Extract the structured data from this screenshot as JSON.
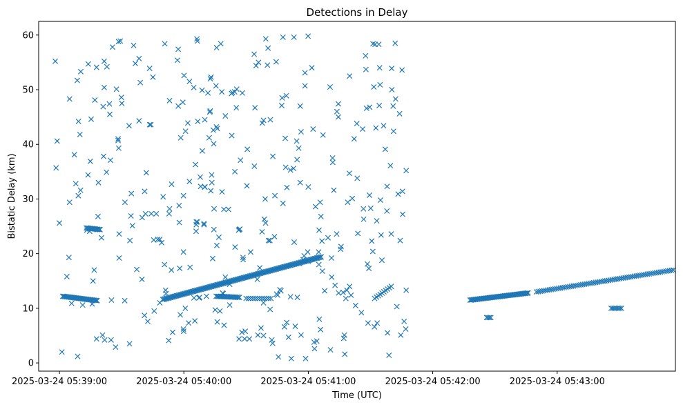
{
  "chart_data": {
    "type": "scatter",
    "title": "Detections in Delay",
    "xlabel": "Time (UTC)",
    "ylabel": "Bistatic Delay (km)",
    "x_unit": "seconds past 2025-03-24 05:38:00 UTC",
    "xlim": [
      50,
      357
    ],
    "ylim": [
      -1.5,
      62.5
    ],
    "x_ticks": [
      {
        "value": 60,
        "label": "2025-03-24 05:39:00"
      },
      {
        "value": 120,
        "label": "2025-03-24 05:40:00"
      },
      {
        "value": 180,
        "label": "2025-03-24 05:41:00"
      },
      {
        "value": 240,
        "label": "2025-03-24 05:42:00"
      },
      {
        "value": 300,
        "label": "2025-03-24 05:43:00"
      }
    ],
    "y_ticks": [
      0,
      10,
      20,
      30,
      40,
      50,
      60
    ],
    "marker": "x",
    "color": "#1f77b4",
    "grid": false,
    "legend": "none",
    "tracks": [
      {
        "x_start": 61.6,
        "x_end": 78.2,
        "y_start": 12.2,
        "y_end": 11.4,
        "count": 34
      },
      {
        "x_start": 73.0,
        "x_end": 79.6,
        "y_start": 24.7,
        "y_end": 24.4,
        "count": 13
      },
      {
        "x_start": 109.8,
        "x_end": 186.2,
        "y_start": 11.6,
        "y_end": 19.4,
        "count": 150
      },
      {
        "x_start": 135.6,
        "x_end": 146.8,
        "y_start": 12.2,
        "y_end": 12.0,
        "count": 20
      },
      {
        "x_start": 258.0,
        "x_end": 286.0,
        "y_start": 11.5,
        "y_end": 12.8,
        "count": 55
      },
      {
        "x_start": 290.0,
        "x_end": 356.0,
        "y_start": 13.0,
        "y_end": 17.0,
        "count": 75
      },
      {
        "x_start": 266.0,
        "x_end": 268.0,
        "y_start": 8.3,
        "y_end": 8.3,
        "count": 4
      },
      {
        "x_start": 326.0,
        "x_end": 331.0,
        "y_start": 10.0,
        "y_end": 10.0,
        "count": 8
      },
      {
        "x_start": 150.0,
        "x_end": 162.0,
        "y_start": 11.8,
        "y_end": 11.8,
        "count": 12
      },
      {
        "x_start": 212.0,
        "x_end": 220.0,
        "y_start": 11.8,
        "y_end": 14.0,
        "count": 10
      }
    ],
    "points": [
      [
        58.0,
        55.2
      ],
      [
        58.4,
        35.7
      ],
      [
        58.9,
        40.6
      ],
      [
        60.0,
        25.6
      ],
      [
        61.2,
        2.0
      ],
      [
        63.6,
        15.8
      ],
      [
        64.6,
        19.3
      ],
      [
        64.9,
        29.4
      ],
      [
        64.9,
        48.3
      ],
      [
        65.9,
        10.9
      ],
      [
        67.2,
        38.1
      ],
      [
        67.9,
        32.8
      ],
      [
        68.6,
        51.7
      ],
      [
        68.8,
        1.2
      ],
      [
        69.1,
        30.6
      ],
      [
        69.2,
        44.2
      ],
      [
        69.9,
        41.8
      ],
      [
        70.2,
        31.6
      ],
      [
        70.3,
        53.3
      ],
      [
        71.2,
        10.6
      ],
      [
        73.2,
        24.3
      ],
      [
        73.8,
        34.4
      ],
      [
        73.9,
        54.7
      ],
      [
        74.6,
        24.1
      ],
      [
        74.9,
        36.9
      ],
      [
        75.3,
        44.6
      ],
      [
        75.8,
        10.8
      ],
      [
        76.2,
        15.0
      ],
      [
        76.8,
        17.0
      ],
      [
        77.1,
        48.1
      ],
      [
        77.9,
        54.1
      ],
      [
        77.9,
        4.4
      ],
      [
        78.2,
        24.4
      ],
      [
        78.6,
        26.8
      ],
      [
        78.8,
        33.0
      ],
      [
        80.3,
        22.9
      ],
      [
        80.8,
        5.1
      ],
      [
        81.1,
        46.9
      ],
      [
        81.3,
        37.8
      ],
      [
        81.6,
        55.2
      ],
      [
        81.6,
        50.4
      ],
      [
        81.8,
        4.2
      ],
      [
        82.7,
        34.9
      ],
      [
        82.9,
        54.2
      ],
      [
        84.1,
        47.4
      ],
      [
        84.3,
        45.5
      ],
      [
        84.6,
        37.1
      ],
      [
        84.9,
        4.2
      ],
      [
        85.1,
        11.5
      ],
      [
        85.6,
        57.8
      ],
      [
        87.1,
        2.9
      ],
      [
        87.5,
        50.1
      ],
      [
        88.3,
        41.0
      ],
      [
        88.3,
        40.7
      ],
      [
        88.5,
        58.8
      ],
      [
        88.6,
        39.3
      ],
      [
        88.8,
        23.6
      ],
      [
        88.8,
        19.2
      ],
      [
        89.4,
        58.9
      ],
      [
        89.9,
        48.6
      ],
      [
        90.1,
        47.5
      ],
      [
        91.5,
        11.4
      ],
      [
        91.6,
        29.4
      ],
      [
        93.6,
        43.4
      ],
      [
        93.8,
        3.5
      ],
      [
        94.0,
        22.4
      ],
      [
        94.5,
        26.9
      ],
      [
        94.7,
        31.0
      ],
      [
        95.2,
        25.1
      ],
      [
        95.8,
        58.1
      ],
      [
        96.6,
        54.8
      ],
      [
        97.3,
        17.1
      ],
      [
        98.4,
        55.7
      ],
      [
        98.4,
        44.3
      ],
      [
        99.0,
        51.3
      ],
      [
        99.8,
        15.3
      ],
      [
        99.9,
        26.6
      ],
      [
        101.0,
        8.7
      ],
      [
        101.1,
        31.4
      ],
      [
        101.5,
        27.3
      ],
      [
        101.9,
        34.8
      ],
      [
        102.6,
        7.6
      ],
      [
        103.5,
        53.9
      ],
      [
        103.5,
        43.6
      ],
      [
        104.1,
        43.6
      ],
      [
        104.3,
        27.3
      ],
      [
        105.1,
        52.3
      ],
      [
        105.5,
        22.5
      ],
      [
        105.7,
        9.5
      ],
      [
        106.7,
        27.3
      ],
      [
        107.4,
        22.6
      ],
      [
        108.4,
        11.0
      ],
      [
        108.4,
        22.6
      ],
      [
        109.3,
        22.0
      ],
      [
        110.0,
        30.4
      ],
      [
        110.7,
        18.0
      ],
      [
        110.8,
        58.4
      ],
      [
        111.2,
        13.3
      ],
      [
        111.4,
        12.7
      ],
      [
        112.7,
        4.1
      ],
      [
        112.9,
        27.3
      ],
      [
        113.1,
        48.0
      ],
      [
        113.1,
        28.2
      ],
      [
        114.0,
        17.0
      ],
      [
        114.1,
        32.7
      ],
      [
        114.6,
        5.6
      ],
      [
        116.9,
        55.4
      ],
      [
        117.3,
        57.4
      ],
      [
        117.3,
        47.0
      ],
      [
        117.7,
        28.8
      ],
      [
        117.8,
        25.7
      ],
      [
        118.0,
        17.3
      ],
      [
        118.3,
        8.8
      ],
      [
        118.5,
        41.2
      ],
      [
        119.5,
        47.7
      ],
      [
        119.8,
        30.6
      ],
      [
        119.8,
        20.3
      ],
      [
        119.8,
        6.2
      ],
      [
        119.9,
        5.8
      ],
      [
        120.1,
        52.6
      ],
      [
        120.7,
        10.0
      ],
      [
        120.8,
        42.4
      ],
      [
        121.9,
        43.9
      ],
      [
        122.3,
        7.3
      ],
      [
        122.7,
        51.5
      ],
      [
        122.7,
        33.2
      ],
      [
        123.0,
        17.5
      ],
      [
        124.8,
        50.4
      ],
      [
        124.9,
        11.9
      ],
      [
        125.3,
        7.7
      ],
      [
        125.6,
        36.3
      ],
      [
        125.9,
        24.1
      ],
      [
        126.0,
        25.8
      ],
      [
        126.0,
        25.3
      ],
      [
        126.3,
        59.3
      ],
      [
        126.5,
        25.8
      ],
      [
        126.5,
        58.9
      ],
      [
        126.7,
        44.2
      ],
      [
        127.3,
        11.9
      ],
      [
        127.6,
        12.0
      ],
      [
        127.9,
        34.0
      ],
      [
        128.1,
        32.3
      ],
      [
        128.8,
        49.9
      ],
      [
        128.9,
        38.8
      ],
      [
        129.7,
        25.5
      ],
      [
        129.7,
        25.3
      ],
      [
        130.0,
        32.2
      ],
      [
        130.1,
        44.5
      ],
      [
        130.2,
        32.2
      ],
      [
        130.9,
        12.2
      ],
      [
        131.6,
        49.4
      ],
      [
        132.2,
        41.2
      ],
      [
        132.5,
        45.9
      ],
      [
        132.7,
        46.1
      ],
      [
        132.8,
        52.0
      ],
      [
        133.0,
        31.5
      ],
      [
        133.1,
        52.3
      ],
      [
        133.4,
        34.4
      ],
      [
        133.5,
        33.0
      ],
      [
        133.9,
        19.1
      ],
      [
        134.2,
        42.6
      ],
      [
        134.4,
        40.1
      ],
      [
        134.5,
        24.4
      ],
      [
        134.6,
        28.2
      ],
      [
        135.1,
        9.7
      ],
      [
        135.5,
        50.7
      ],
      [
        135.7,
        43.2
      ],
      [
        135.8,
        57.7
      ],
      [
        135.9,
        21.5
      ],
      [
        136.1,
        42.9
      ],
      [
        136.1,
        7.5
      ],
      [
        136.9,
        23.0
      ],
      [
        137.4,
        9.5
      ],
      [
        137.8,
        58.4
      ],
      [
        138.3,
        49.6
      ],
      [
        138.4,
        31.3
      ],
      [
        138.7,
        12.8
      ],
      [
        138.9,
        12.7
      ],
      [
        139.3,
        28.1
      ],
      [
        139.4,
        6.9
      ],
      [
        140.0,
        45.2
      ],
      [
        140.0,
        15.7
      ],
      [
        141.5,
        28.1
      ],
      [
        142.1,
        14.4
      ],
      [
        142.1,
        10.6
      ],
      [
        143.0,
        49.3
      ],
      [
        143.1,
        41.6
      ],
      [
        143.4,
        49.5
      ],
      [
        144.5,
        49.6
      ],
      [
        144.6,
        35.0
      ],
      [
        144.7,
        21.2
      ],
      [
        145.3,
        46.7
      ],
      [
        145.5,
        50.1
      ],
      [
        146.4,
        24.3
      ],
      [
        146.6,
        4.4
      ],
      [
        146.7,
        24.4
      ],
      [
        147.0,
        24.5
      ],
      [
        147.3,
        37.1
      ],
      [
        148.0,
        5.6
      ],
      [
        148.2,
        49.4
      ],
      [
        148.5,
        19.3
      ],
      [
        148.6,
        18.9
      ],
      [
        149.3,
        4.4
      ],
      [
        149.6,
        5.8
      ],
      [
        150.4,
        32.4
      ],
      [
        150.6,
        39.1
      ],
      [
        151.6,
        4.4
      ],
      [
        152.2,
        20.3
      ],
      [
        153.9,
        56.5
      ],
      [
        154.0,
        36.0
      ],
      [
        154.3,
        46.7
      ],
      [
        154.8,
        54.4
      ],
      [
        155.4,
        15.3
      ],
      [
        155.7,
        5.1
      ],
      [
        156.0,
        55.0
      ],
      [
        156.6,
        17.4
      ],
      [
        157.2,
        6.4
      ],
      [
        157.7,
        24.0
      ],
      [
        157.8,
        43.9
      ],
      [
        158.4,
        11.0
      ],
      [
        158.4,
        44.4
      ],
      [
        158.4,
        5.0
      ],
      [
        158.8,
        26.3
      ],
      [
        159.2,
        30.0
      ],
      [
        159.4,
        25.6
      ],
      [
        159.5,
        59.3
      ],
      [
        160.3,
        54.5
      ],
      [
        160.6,
        57.6
      ],
      [
        160.8,
        22.4
      ],
      [
        161.5,
        22.4
      ],
      [
        161.6,
        9.8
      ],
      [
        161.7,
        44.5
      ],
      [
        162.4,
        4.2
      ],
      [
        162.8,
        3.6
      ],
      [
        162.9,
        37.8
      ],
      [
        163.7,
        23.1
      ],
      [
        163.9,
        30.6
      ],
      [
        164.5,
        55.1
      ],
      [
        164.7,
        12.6
      ],
      [
        165.2,
        12.4
      ],
      [
        165.6,
        1.1
      ],
      [
        166.3,
        13.4
      ],
      [
        166.8,
        13.2
      ],
      [
        167.2,
        47.1
      ],
      [
        167.4,
        48.5
      ],
      [
        167.8,
        29.2
      ],
      [
        167.8,
        59.6
      ],
      [
        168.5,
        6.6
      ],
      [
        168.9,
        41.1
      ],
      [
        169.1,
        35.8
      ],
      [
        169.4,
        48.9
      ],
      [
        169.6,
        7.4
      ],
      [
        169.7,
        32.1
      ],
      [
        170.5,
        4.7
      ],
      [
        171.4,
        35.3
      ],
      [
        171.4,
        12.1
      ],
      [
        171.8,
        0.8
      ],
      [
        172.9,
        35.6
      ],
      [
        173.1,
        59.6
      ],
      [
        173.2,
        22.1
      ],
      [
        173.7,
        6.7
      ],
      [
        174.4,
        40.6
      ],
      [
        174.6,
        37.2
      ],
      [
        174.7,
        12.0
      ],
      [
        175.4,
        39.3
      ],
      [
        175.7,
        18.2
      ],
      [
        176.1,
        47.0
      ],
      [
        176.1,
        33.0
      ],
      [
        176.5,
        42.3
      ],
      [
        176.5,
        5.1
      ],
      [
        177.5,
        18.9
      ],
      [
        178.0,
        19.6
      ],
      [
        178.4,
        53.1
      ],
      [
        178.4,
        50.7
      ],
      [
        178.7,
        0.8
      ],
      [
        179.7,
        20.3
      ],
      [
        179.9,
        59.8
      ],
      [
        180.0,
        18.6
      ],
      [
        180.0,
        32.2
      ],
      [
        181.7,
        54.0
      ],
      [
        182.3,
        42.8
      ],
      [
        182.8,
        3.8
      ],
      [
        183.0,
        2.6
      ],
      [
        183.5,
        28.6
      ],
      [
        184.1,
        4.0
      ],
      [
        184.2,
        19.2
      ],
      [
        185.0,
        20.3
      ],
      [
        185.1,
        18.0
      ],
      [
        185.2,
        24.3
      ],
      [
        185.3,
        8.0
      ],
      [
        185.7,
        29.4
      ],
      [
        185.9,
        6.1
      ],
      [
        186.1,
        26.8
      ],
      [
        186.6,
        22.3
      ],
      [
        186.8,
        16.8
      ],
      [
        187.1,
        41.7
      ],
      [
        187.9,
        13.2
      ],
      [
        189.5,
        22.9
      ],
      [
        190.5,
        50.5
      ],
      [
        190.7,
        2.4
      ],
      [
        191.2,
        19.2
      ],
      [
        191.3,
        15.7
      ],
      [
        191.7,
        37.5
      ],
      [
        191.8,
        36.7
      ],
      [
        192.3,
        31.6
      ],
      [
        192.9,
        14.2
      ],
      [
        193.7,
        23.6
      ],
      [
        193.8,
        46.0
      ],
      [
        194.5,
        47.4
      ],
      [
        194.5,
        45.0
      ],
      [
        194.6,
        12.8
      ],
      [
        195.6,
        20.8
      ],
      [
        195.8,
        21.3
      ],
      [
        196.8,
        12.9
      ],
      [
        197.1,
        4.5
      ],
      [
        197.4,
        5.1
      ],
      [
        197.6,
        1.6
      ],
      [
        198.1,
        11.8
      ],
      [
        198.6,
        13.3
      ],
      [
        199.0,
        29.4
      ],
      [
        199.8,
        34.7
      ],
      [
        199.9,
        52.5
      ],
      [
        199.9,
        14.0
      ],
      [
        200.6,
        12.4
      ],
      [
        201.2,
        30.1
      ],
      [
        202.1,
        41.0
      ],
      [
        202.8,
        10.5
      ],
      [
        203.4,
        43.8
      ],
      [
        203.6,
        33.8
      ],
      [
        203.9,
        23.7
      ],
      [
        205.6,
        9.2
      ],
      [
        206.2,
        42.8
      ],
      [
        206.6,
        28.2
      ],
      [
        206.7,
        26.3
      ],
      [
        207.6,
        56.2
      ],
      [
        207.8,
        53.7
      ],
      [
        208.1,
        46.6
      ],
      [
        208.5,
        18.1
      ],
      [
        208.8,
        7.3
      ],
      [
        209.2,
        17.3
      ],
      [
        209.5,
        30.7
      ],
      [
        209.6,
        46.8
      ],
      [
        210.1,
        28.3
      ],
      [
        210.6,
        22.3
      ],
      [
        211.1,
        20.4
      ],
      [
        211.2,
        58.4
      ],
      [
        211.6,
        50.5
      ],
      [
        211.9,
        6.6
      ],
      [
        212.2,
        58.3
      ],
      [
        212.6,
        43.0
      ],
      [
        213.0,
        26.0
      ],
      [
        213.2,
        7.3
      ],
      [
        214.0,
        58.3
      ],
      [
        214.2,
        47.1
      ],
      [
        214.4,
        54.0
      ],
      [
        214.6,
        50.9
      ],
      [
        214.8,
        29.8
      ],
      [
        215.1,
        23.4
      ],
      [
        215.5,
        18.8
      ],
      [
        216.3,
        43.4
      ],
      [
        217.1,
        39.1
      ],
      [
        217.9,
        27.8
      ],
      [
        218.0,
        32.3
      ],
      [
        218.2,
        5.5
      ],
      [
        218.9,
        1.4
      ],
      [
        219.6,
        36.1
      ],
      [
        220.0,
        23.6
      ],
      [
        220.2,
        53.9
      ],
      [
        220.3,
        50.0
      ],
      [
        220.9,
        47.0
      ],
      [
        221.1,
        42.4
      ],
      [
        221.9,
        58.5
      ],
      [
        222.1,
        48.3
      ],
      [
        222.7,
        10.3
      ],
      [
        223.3,
        30.9
      ],
      [
        224.0,
        45.6
      ],
      [
        224.3,
        22.4
      ],
      [
        224.6,
        5.1
      ],
      [
        225.2,
        53.6
      ],
      [
        225.4,
        31.4
      ],
      [
        225.5,
        27.2
      ],
      [
        226.2,
        7.6
      ],
      [
        227.0,
        6.2
      ],
      [
        227.2,
        35.2
      ],
      [
        227.2,
        13.3
      ]
    ]
  }
}
